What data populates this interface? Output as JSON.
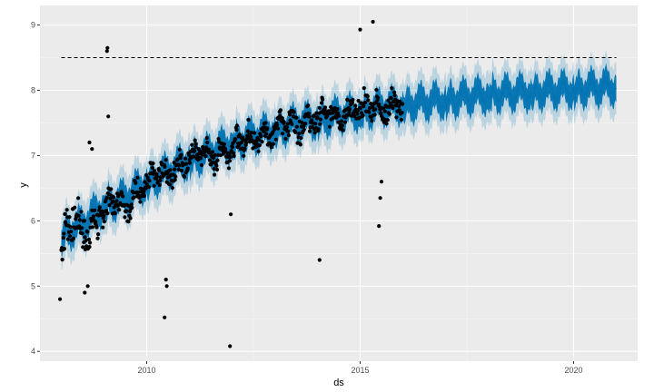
{
  "chart_data": {
    "type": "line",
    "xlabel": "ds",
    "ylabel": "y",
    "x_tick_labels": [
      "2010",
      "2015",
      "2020"
    ],
    "x_tick_values": [
      2010,
      2015,
      2020
    ],
    "y_tick_labels": [
      "4",
      "5",
      "6",
      "7",
      "8",
      "9"
    ],
    "y_tick_values": [
      4,
      5,
      6,
      7,
      8,
      9
    ],
    "xlim": [
      2007.5,
      2021.5
    ],
    "ylim": [
      3.85,
      9.3
    ],
    "grid": true,
    "legend": "none",
    "cap": 8.5,
    "history_end": 2016.0,
    "forecast_end": 2021.0,
    "observed": {
      "x": [
        2008.0,
        2008.15,
        2008.3,
        2008.45,
        2008.6,
        2008.75,
        2008.9,
        2009.05,
        2009.25,
        2009.5,
        2009.75,
        2010.0,
        2010.25,
        2010.5,
        2010.75,
        2011.0,
        2011.25,
        2011.5,
        2011.75,
        2012.0,
        2012.25,
        2012.5,
        2012.75,
        2013.0,
        2013.25,
        2013.5,
        2013.75,
        2014.0,
        2014.25,
        2014.5,
        2014.75,
        2015.0,
        2015.25,
        2015.5,
        2015.75,
        2016.0
      ],
      "y": [
        5.7,
        5.95,
        6.05,
        5.9,
        5.8,
        5.9,
        6.05,
        6.3,
        6.35,
        6.2,
        6.4,
        6.6,
        6.75,
        6.7,
        6.85,
        7.0,
        7.1,
        6.95,
        7.05,
        7.15,
        7.3,
        7.25,
        7.3,
        7.45,
        7.55,
        7.45,
        7.5,
        7.6,
        7.7,
        7.6,
        7.65,
        7.75,
        7.8,
        7.7,
        7.75,
        7.8
      ]
    },
    "observed_outliers": {
      "x": [
        2007.97,
        2008.55,
        2008.62,
        2008.66,
        2008.72,
        2009.07,
        2009.08,
        2009.1,
        2010.42,
        2010.45,
        2010.47,
        2011.95,
        2011.97,
        2014.05,
        2015.0,
        2015.3,
        2015.44,
        2015.47,
        2015.5
      ],
      "y": [
        4.8,
        4.9,
        5.0,
        7.2,
        7.1,
        8.6,
        8.65,
        7.6,
        4.52,
        5.1,
        5.0,
        4.08,
        6.1,
        5.4,
        8.93,
        9.05,
        5.92,
        6.35,
        6.6
      ]
    },
    "forecast": {
      "x": [
        2008.0,
        2008.5,
        2009.0,
        2009.5,
        2010.0,
        2010.5,
        2011.0,
        2011.5,
        2012.0,
        2012.5,
        2013.0,
        2013.5,
        2014.0,
        2014.5,
        2015.0,
        2015.5,
        2016.0,
        2016.5,
        2017.0,
        2017.5,
        2018.0,
        2018.5,
        2019.0,
        2019.5,
        2020.0,
        2020.5,
        2021.0
      ],
      "yhat": [
        5.8,
        5.95,
        6.25,
        6.35,
        6.6,
        6.75,
        6.95,
        7.05,
        7.2,
        7.3,
        7.4,
        7.5,
        7.55,
        7.62,
        7.68,
        7.74,
        7.78,
        7.82,
        7.86,
        7.9,
        7.94,
        7.96,
        7.98,
        8.0,
        8.02,
        8.04,
        8.06
      ],
      "band_inner": 0.2,
      "band_outer": 0.4
    }
  }
}
